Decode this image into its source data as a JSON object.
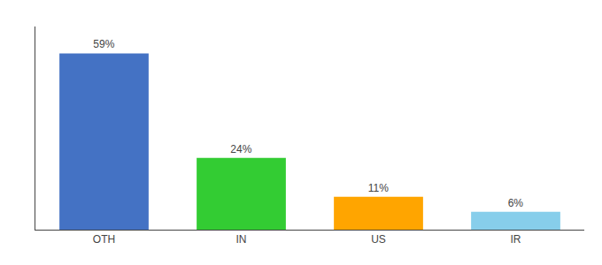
{
  "chart_data": {
    "type": "bar",
    "categories": [
      "OTH",
      "IN",
      "US",
      "IR"
    ],
    "values": [
      59,
      24,
      11,
      6
    ],
    "value_labels": [
      "59%",
      "24%",
      "11%",
      "6%"
    ],
    "colors": [
      "#4472C4",
      "#33CC33",
      "#FFA500",
      "#87CEEB"
    ],
    "ylim": [
      0,
      68
    ],
    "data_labels": true,
    "tick_labels": "x",
    "grid": false
  }
}
